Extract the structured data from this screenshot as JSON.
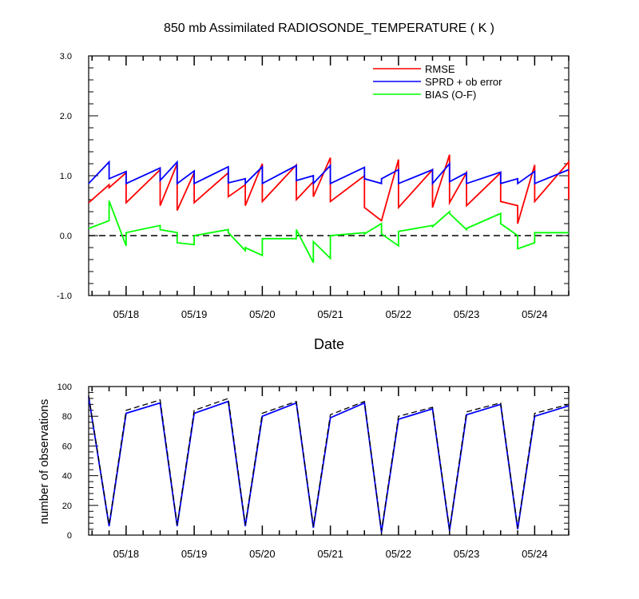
{
  "chart_data": [
    {
      "type": "line",
      "title": "850 mb Assimilated RADIOSONDE_TEMPERATURE ( K )",
      "xlabel": "Date",
      "ylabel": "",
      "xlim": [
        17.45,
        24.5
      ],
      "ylim": [
        -1.0,
        3.0
      ],
      "yticks": [
        -1.0,
        0.0,
        1.0,
        2.0,
        3.0
      ],
      "ytick_labels": [
        "-1.0",
        "0.0",
        "1.0",
        "2.0",
        "3.0"
      ],
      "xticks": [
        18,
        19,
        20,
        21,
        22,
        23,
        24
      ],
      "xtick_labels": [
        "05/18",
        "05/19",
        "05/20",
        "05/21",
        "05/22",
        "05/23",
        "05/24"
      ],
      "reference_line": {
        "y": 0.0,
        "style": "dashed",
        "color": "#000000"
      },
      "legend_position": "top-right",
      "series": [
        {
          "name": "RMSE",
          "color": "#ff0000",
          "x": [
            17.45,
            17.75,
            17.75,
            18.0,
            18.0,
            18.5,
            18.5,
            18.75,
            18.75,
            19.0,
            19.0,
            19.5,
            19.5,
            19.75,
            19.75,
            20.0,
            20.0,
            20.5,
            20.5,
            20.75,
            20.75,
            21.0,
            21.0,
            21.5,
            21.5,
            21.75,
            21.75,
            22.0,
            22.0,
            22.5,
            22.5,
            22.75,
            22.75,
            23.0,
            23.0,
            23.5,
            23.5,
            23.75,
            23.75,
            24.0,
            24.0,
            24.5,
            24.5
          ],
          "y": [
            0.55,
            0.85,
            0.8,
            1.05,
            0.55,
            1.1,
            0.5,
            1.2,
            0.42,
            1.05,
            0.55,
            1.05,
            0.65,
            0.85,
            0.5,
            1.2,
            0.57,
            1.18,
            0.6,
            0.9,
            0.65,
            1.3,
            0.57,
            1.0,
            0.47,
            0.25,
            0.25,
            1.27,
            0.47,
            1.1,
            0.47,
            1.35,
            0.55,
            1.05,
            0.5,
            1.05,
            0.57,
            0.5,
            0.2,
            1.18,
            0.57,
            1.23,
            0.6
          ]
        },
        {
          "name": "SPRD + ob error",
          "color": "#0000ff",
          "x": [
            17.45,
            17.75,
            17.75,
            18.0,
            18.0,
            18.5,
            18.5,
            18.75,
            18.75,
            19.0,
            19.0,
            19.5,
            19.5,
            19.75,
            19.75,
            20.0,
            20.0,
            20.5,
            20.5,
            20.75,
            20.75,
            21.0,
            21.0,
            21.5,
            21.5,
            21.75,
            21.75,
            22.0,
            22.0,
            22.5,
            22.5,
            22.75,
            22.75,
            23.0,
            23.0,
            23.5,
            23.5,
            23.75,
            23.75,
            24.0,
            24.0,
            24.5
          ],
          "y": [
            0.87,
            1.23,
            0.95,
            1.07,
            0.87,
            1.13,
            0.92,
            1.23,
            0.87,
            1.08,
            0.87,
            1.15,
            0.88,
            0.95,
            0.87,
            1.15,
            0.87,
            1.17,
            0.92,
            1.0,
            0.87,
            1.17,
            0.87,
            1.14,
            0.95,
            0.87,
            0.95,
            1.1,
            0.87,
            1.1,
            0.87,
            1.2,
            0.9,
            1.05,
            0.87,
            1.06,
            0.87,
            0.95,
            0.87,
            1.07,
            0.87,
            1.1
          ]
        },
        {
          "name": "BIAS (O-F)",
          "color": "#00ff00",
          "x": [
            17.45,
            17.75,
            17.75,
            18.0,
            18.0,
            18.5,
            18.5,
            18.75,
            18.75,
            19.0,
            19.0,
            19.5,
            19.5,
            19.75,
            19.75,
            20.0,
            20.0,
            20.5,
            20.5,
            20.75,
            20.75,
            21.0,
            21.0,
            21.5,
            21.5,
            21.75,
            21.75,
            22.0,
            22.0,
            22.5,
            22.5,
            22.75,
            22.75,
            23.0,
            23.0,
            23.5,
            23.5,
            23.75,
            23.75,
            24.0,
            24.0,
            24.5
          ],
          "y": [
            0.12,
            0.25,
            0.58,
            -0.17,
            0.05,
            0.17,
            0.1,
            0.05,
            -0.12,
            -0.15,
            0.0,
            0.1,
            0.05,
            -0.25,
            -0.2,
            -0.33,
            -0.05,
            -0.05,
            0.1,
            -0.45,
            -0.1,
            -0.38,
            0.0,
            0.05,
            0.03,
            0.2,
            0.03,
            -0.17,
            0.07,
            0.17,
            0.15,
            0.4,
            0.37,
            0.1,
            0.12,
            0.37,
            0.2,
            0.0,
            -0.22,
            -0.12,
            0.05,
            0.05
          ]
        }
      ]
    },
    {
      "type": "line",
      "title": "",
      "xlabel": "",
      "ylabel": "number of observations",
      "xlim": [
        17.45,
        24.5
      ],
      "ylim": [
        0,
        100
      ],
      "yticks": [
        0,
        20,
        40,
        60,
        80,
        100
      ],
      "ytick_labels": [
        "0",
        "20",
        "40",
        "60",
        "80",
        "100"
      ],
      "xticks": [
        18,
        19,
        20,
        21,
        22,
        23,
        24
      ],
      "xtick_labels": [
        "05/18",
        "05/19",
        "05/20",
        "05/21",
        "05/22",
        "05/23",
        "05/24"
      ],
      "series": [
        {
          "color": "#0000ff",
          "style": "solid",
          "x": [
            17.45,
            17.75,
            18.0,
            18.5,
            18.75,
            19.0,
            19.5,
            19.75,
            20.0,
            20.5,
            20.75,
            21.0,
            21.5,
            21.75,
            22.0,
            22.5,
            22.75,
            23.0,
            23.5,
            23.75,
            24.0,
            24.5
          ],
          "y": [
            93,
            6,
            82,
            89,
            6,
            82,
            90,
            6,
            80,
            89,
            5,
            79,
            89,
            2,
            78,
            85,
            3,
            81,
            88,
            4,
            80,
            87
          ]
        },
        {
          "color": "#000000",
          "style": "dashed",
          "x": [
            17.45,
            17.75,
            18.0,
            18.5,
            18.75,
            19.0,
            19.5,
            19.75,
            20.0,
            20.5,
            20.75,
            21.0,
            21.5,
            21.75,
            22.0,
            22.5,
            22.75,
            23.0,
            23.5,
            23.75,
            24.0,
            24.5
          ],
          "y": [
            94,
            7,
            84,
            91,
            7,
            84,
            92,
            7,
            82,
            90,
            6,
            81,
            90,
            3,
            80,
            86,
            4,
            83,
            89,
            5,
            82,
            88
          ]
        }
      ]
    }
  ]
}
